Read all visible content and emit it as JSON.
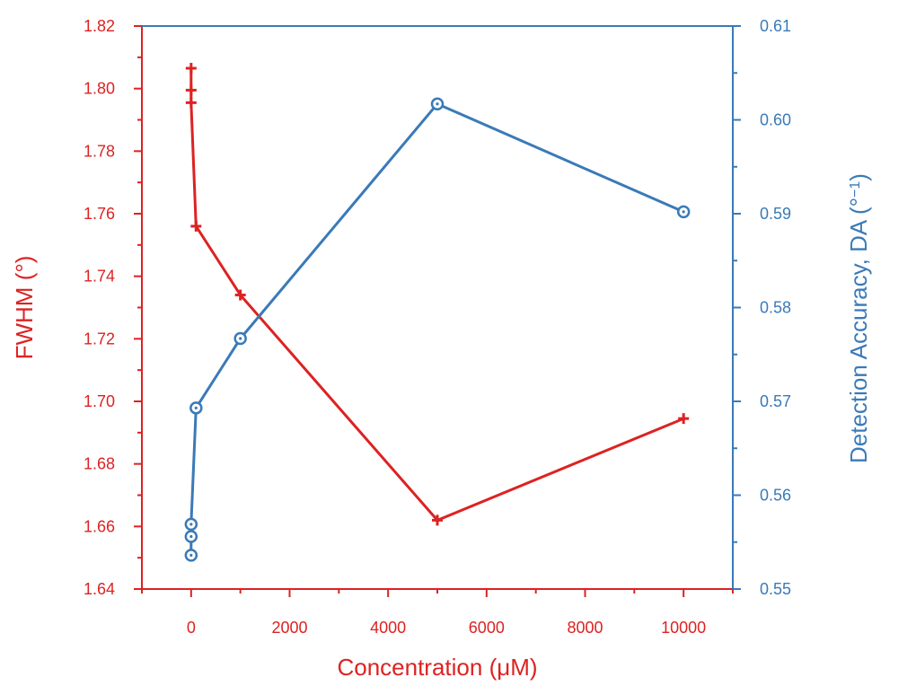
{
  "chart_data": {
    "type": "line",
    "xlabel": "Concentration (μM)",
    "x_ticks": [
      "0",
      "2000",
      "4000",
      "6000",
      "8000",
      "10000"
    ],
    "xlim": [
      -1000,
      11000
    ],
    "y_left": {
      "label": "FWHM (°)",
      "ylim": [
        1.64,
        1.82
      ],
      "ticks": [
        "1.64",
        "1.66",
        "1.68",
        "1.70",
        "1.72",
        "1.74",
        "1.76",
        "1.78",
        "1.80",
        "1.82"
      ],
      "color": "#dd2222"
    },
    "y_right": {
      "label_main": "Detection Accuracy,  DA (°",
      "label_sup": "−1",
      "label_end": ")",
      "ylim": [
        0.55,
        0.61
      ],
      "ticks": [
        "0.55",
        "0.56",
        "0.57",
        "0.58",
        "0.59",
        "0.60",
        "0.61"
      ],
      "color": "#3a7ab8"
    },
    "series": [
      {
        "axis": "left",
        "marker": "plus",
        "color": "#dd2222",
        "x": [
          0,
          0,
          0,
          100,
          1000,
          5000,
          10000
        ],
        "y": [
          1.8065,
          1.7995,
          1.7955,
          1.756,
          1.734,
          1.662,
          1.6945
        ]
      },
      {
        "axis": "right",
        "marker": "circle",
        "color": "#3a7ab8",
        "x": [
          0,
          0,
          0,
          100,
          1000,
          5000,
          10000
        ],
        "y": [
          0.5536,
          0.5556,
          0.5569,
          0.5693,
          0.5767,
          0.6017,
          0.5902
        ]
      }
    ],
    "grid": false
  }
}
